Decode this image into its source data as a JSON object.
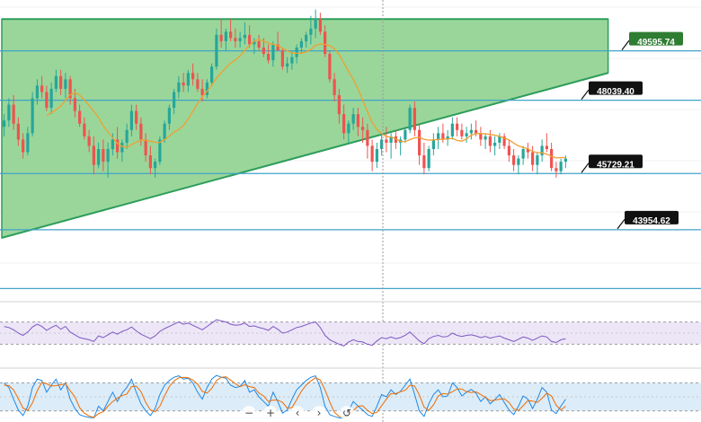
{
  "chart_data": {
    "type": "candlestick",
    "title": "",
    "xlabel": "",
    "ylabel": "",
    "ylim": [
      41800,
      51200
    ],
    "grid": true,
    "colors": {
      "up": "#26a69a",
      "down": "#ef5350",
      "ma": "#f0a030",
      "channel_fill": "#8fd18f",
      "channel_line": "#2e9e5b",
      "level_line": "#3fa3c8",
      "tag_bg": "#111111",
      "tag_text": "#ffffff",
      "tag_highlight_bg": "#2e7d32",
      "rsi_band": "#ece6f7",
      "rsi_line": "#7e57c2",
      "stoch_band": "#dcecf8",
      "stoch_k": "#1e88e5",
      "stoch_d": "#ef6c00"
    },
    "levels": [
      {
        "label": "49595.74",
        "value": 49595.74,
        "highlight": true
      },
      {
        "label": "48039.40",
        "value": 48039.4,
        "highlight": false
      },
      {
        "label": "45729.21",
        "value": 45729.21,
        "highlight": false
      },
      {
        "label": "43954.62",
        "value": 43954.62,
        "highlight": false
      },
      {
        "label": "",
        "value": 42100,
        "highlight": false
      }
    ],
    "channel": {
      "upper": [
        [
          0,
          50600
        ],
        [
          128,
          50600
        ]
      ],
      "lower": [
        [
          0,
          43700
        ],
        [
          128,
          48900
        ]
      ]
    },
    "ma_period": 10,
    "candles": [
      [
        47200,
        47600,
        46900,
        47400
      ],
      [
        47400,
        48100,
        47200,
        47900
      ],
      [
        47900,
        48200,
        47100,
        47300
      ],
      [
        47300,
        47500,
        46600,
        46800
      ],
      [
        46800,
        47000,
        46200,
        46400
      ],
      [
        46400,
        47200,
        46300,
        47000
      ],
      [
        47000,
        48300,
        46900,
        48100
      ],
      [
        48100,
        48700,
        47900,
        48500
      ],
      [
        48500,
        48800,
        48100,
        48300
      ],
      [
        48300,
        48500,
        47700,
        47800
      ],
      [
        47800,
        48600,
        47600,
        48400
      ],
      [
        48400,
        49000,
        48300,
        48800
      ],
      [
        48800,
        49000,
        48200,
        48400
      ],
      [
        48400,
        48900,
        48100,
        48700
      ],
      [
        48700,
        48800,
        47900,
        48100
      ],
      [
        48100,
        48400,
        47500,
        47700
      ],
      [
        47700,
        47900,
        47200,
        47300
      ],
      [
        47300,
        47500,
        46800,
        46900
      ],
      [
        46900,
        47100,
        46400,
        46600
      ],
      [
        46600,
        46900,
        45700,
        46000
      ],
      [
        46000,
        46700,
        45900,
        46500
      ],
      [
        46500,
        46800,
        45800,
        46100
      ],
      [
        46100,
        46700,
        45600,
        46500
      ],
      [
        46500,
        47000,
        46300,
        46800
      ],
      [
        46800,
        47200,
        46200,
        46400
      ],
      [
        46400,
        46800,
        46100,
        46700
      ],
      [
        46700,
        47300,
        46500,
        47100
      ],
      [
        47100,
        47900,
        46900,
        47700
      ],
      [
        47700,
        47900,
        47100,
        47300
      ],
      [
        47300,
        47500,
        46600,
        46800
      ],
      [
        46800,
        47000,
        46100,
        46300
      ],
      [
        46300,
        46600,
        45700,
        45900
      ],
      [
        45900,
        46200,
        45600,
        46100
      ],
      [
        46100,
        46900,
        46000,
        46800
      ],
      [
        46800,
        47400,
        46700,
        47300
      ],
      [
        47300,
        47900,
        47100,
        47800
      ],
      [
        47800,
        48400,
        47600,
        48300
      ],
      [
        48300,
        48800,
        48100,
        48600
      ],
      [
        48600,
        48900,
        48300,
        48500
      ],
      [
        48500,
        49000,
        48300,
        48900
      ],
      [
        48900,
        49200,
        48500,
        48700
      ],
      [
        48700,
        48900,
        48300,
        48400
      ],
      [
        48400,
        48700,
        48000,
        48200
      ],
      [
        48200,
        48700,
        48100,
        48600
      ],
      [
        48600,
        49200,
        48500,
        49100
      ],
      [
        49100,
        50300,
        49000,
        50100
      ],
      [
        50100,
        50600,
        49700,
        49900
      ],
      [
        49900,
        50300,
        49600,
        50200
      ],
      [
        50200,
        50600,
        49900,
        50000
      ],
      [
        50000,
        50300,
        49700,
        49900
      ],
      [
        49900,
        50200,
        49700,
        50000
      ],
      [
        50000,
        50500,
        49800,
        50100
      ],
      [
        50100,
        50400,
        49700,
        49800
      ],
      [
        49800,
        50000,
        49500,
        49900
      ],
      [
        49900,
        50100,
        49600,
        49700
      ],
      [
        49700,
        50000,
        49400,
        49500
      ],
      [
        49500,
        49800,
        49200,
        49300
      ],
      [
        49300,
        49900,
        49100,
        49800
      ],
      [
        49800,
        50200,
        49600,
        49600
      ],
      [
        49600,
        49700,
        49000,
        49100
      ],
      [
        49100,
        49400,
        48900,
        49200
      ],
      [
        49200,
        49600,
        49000,
        49400
      ],
      [
        49400,
        49800,
        49200,
        49700
      ],
      [
        49700,
        50000,
        49500,
        49900
      ],
      [
        49900,
        50200,
        49700,
        50100
      ],
      [
        50100,
        50700,
        49800,
        50300
      ],
      [
        50300,
        50900,
        50000,
        50600
      ],
      [
        50600,
        50800,
        50100,
        50200
      ],
      [
        50200,
        50400,
        49400,
        49500
      ],
      [
        49500,
        49600,
        48600,
        48700
      ],
      [
        48700,
        48900,
        48000,
        48200
      ],
      [
        48200,
        48400,
        47300,
        47600
      ],
      [
        47600,
        47900,
        46800,
        47000
      ],
      [
        47000,
        47400,
        46700,
        47300
      ],
      [
        47300,
        47800,
        47100,
        47600
      ],
      [
        47600,
        47800,
        46900,
        47200
      ],
      [
        47200,
        47500,
        46700,
        47100
      ],
      [
        47100,
        47300,
        46200,
        46600
      ],
      [
        46600,
        46800,
        45800,
        46100
      ],
      [
        46100,
        46700,
        45900,
        46500
      ],
      [
        46500,
        47000,
        46300,
        46800
      ],
      [
        46800,
        47200,
        46400,
        46700
      ],
      [
        46700,
        47000,
        46200,
        46900
      ],
      [
        46900,
        47100,
        46500,
        46700
      ],
      [
        46700,
        46900,
        46300,
        46800
      ],
      [
        46800,
        47200,
        46700,
        47100
      ],
      [
        47100,
        47900,
        47000,
        47800
      ],
      [
        47800,
        48000,
        46900,
        47100
      ],
      [
        47100,
        47300,
        46000,
        46300
      ],
      [
        46300,
        46700,
        45700,
        45900
      ],
      [
        45900,
        46600,
        45800,
        46500
      ],
      [
        46500,
        47000,
        46300,
        46800
      ],
      [
        46800,
        47200,
        46500,
        47000
      ],
      [
        47000,
        47300,
        46700,
        46800
      ],
      [
        46800,
        47100,
        46600,
        46900
      ],
      [
        46900,
        47500,
        46800,
        47300
      ],
      [
        47300,
        47500,
        46900,
        47100
      ],
      [
        47100,
        47300,
        46800,
        46900
      ],
      [
        46900,
        47200,
        46700,
        47000
      ],
      [
        47000,
        47300,
        46800,
        47100
      ],
      [
        47100,
        47400,
        46900,
        47000
      ],
      [
        47000,
        47200,
        46600,
        46800
      ],
      [
        46800,
        47000,
        46500,
        46900
      ],
      [
        46900,
        47100,
        46400,
        46600
      ],
      [
        46600,
        46900,
        46300,
        46700
      ],
      [
        46700,
        47000,
        46500,
        46900
      ],
      [
        46900,
        47000,
        46500,
        46600
      ],
      [
        46600,
        46800,
        46100,
        46300
      ],
      [
        46300,
        46500,
        45800,
        46000
      ],
      [
        46000,
        46300,
        45700,
        46200
      ],
      [
        46200,
        46600,
        46000,
        46500
      ],
      [
        46500,
        46700,
        46200,
        46400
      ],
      [
        46400,
        46600,
        45800,
        46000
      ],
      [
        46000,
        46400,
        45700,
        46300
      ],
      [
        46300,
        46800,
        46100,
        46600
      ],
      [
        46600,
        47000,
        46400,
        46500
      ],
      [
        46500,
        46700,
        45800,
        45900
      ],
      [
        45900,
        46100,
        45600,
        45800
      ],
      [
        45800,
        46200,
        45700,
        46100
      ],
      [
        46100,
        46300,
        45900,
        46200
      ]
    ],
    "rsi": [
      62,
      60,
      56,
      50,
      46,
      52,
      61,
      66,
      62,
      55,
      60,
      64,
      57,
      62,
      52,
      47,
      42,
      40,
      38,
      35,
      45,
      42,
      47,
      52,
      48,
      53,
      56,
      61,
      54,
      48,
      44,
      40,
      45,
      53,
      58,
      62,
      66,
      70,
      66,
      68,
      64,
      60,
      56,
      62,
      68,
      74,
      72,
      70,
      66,
      64,
      65,
      68,
      62,
      63,
      60,
      58,
      55,
      62,
      57,
      50,
      52,
      56,
      60,
      62,
      65,
      68,
      70,
      60,
      46,
      38,
      34,
      30,
      27,
      34,
      38,
      35,
      34,
      30,
      28,
      36,
      42,
      40,
      43,
      40,
      42,
      46,
      52,
      44,
      36,
      31,
      40,
      44,
      46,
      43,
      44,
      50,
      46,
      44,
      46,
      47,
      45,
      42,
      44,
      41,
      43,
      45,
      41,
      38,
      35,
      39,
      43,
      41,
      37,
      41,
      45,
      43,
      35,
      33,
      38,
      40
    ],
    "stoch_k": [
      80,
      70,
      45,
      22,
      10,
      30,
      70,
      88,
      85,
      60,
      75,
      88,
      65,
      80,
      45,
      25,
      12,
      8,
      6,
      5,
      30,
      20,
      40,
      60,
      40,
      58,
      70,
      88,
      60,
      35,
      20,
      10,
      25,
      55,
      75,
      85,
      92,
      95,
      88,
      90,
      80,
      60,
      45,
      70,
      88,
      96,
      92,
      90,
      75,
      70,
      72,
      85,
      60,
      65,
      50,
      40,
      30,
      60,
      40,
      15,
      22,
      45,
      65,
      75,
      85,
      92,
      95,
      70,
      30,
      12,
      8,
      5,
      4,
      20,
      40,
      30,
      22,
      12,
      8,
      30,
      55,
      50,
      65,
      55,
      62,
      75,
      88,
      55,
      20,
      8,
      35,
      55,
      65,
      50,
      52,
      80,
      70,
      52,
      60,
      66,
      58,
      40,
      50,
      35,
      44,
      55,
      38,
      22,
      12,
      30,
      52,
      45,
      25,
      45,
      70,
      60,
      22,
      14,
      30,
      45
    ],
    "stoch_d": [
      75,
      74,
      65,
      46,
      26,
      21,
      37,
      63,
      81,
      78,
      73,
      74,
      76,
      78,
      63,
      50,
      27,
      15,
      9,
      6,
      14,
      18,
      30,
      40,
      47,
      53,
      56,
      72,
      73,
      61,
      38,
      22,
      18,
      30,
      52,
      72,
      84,
      91,
      92,
      91,
      86,
      77,
      62,
      58,
      68,
      85,
      92,
      93,
      86,
      78,
      72,
      76,
      72,
      70,
      58,
      52,
      40,
      43,
      43,
      38,
      26,
      27,
      44,
      62,
      75,
      84,
      91,
      86,
      65,
      39,
      17,
      8,
      6,
      10,
      21,
      30,
      31,
      21,
      14,
      17,
      31,
      45,
      57,
      57,
      61,
      64,
      75,
      73,
      54,
      28,
      21,
      33,
      52,
      57,
      56,
      61,
      67,
      67,
      61,
      59,
      61,
      55,
      49,
      42,
      43,
      45,
      46,
      38,
      24,
      21,
      31,
      42,
      41,
      38,
      47,
      58,
      52,
      32,
      22,
      30
    ],
    "rsi_bands": [
      70,
      30
    ],
    "stoch_bands": [
      80,
      20
    ]
  },
  "toolbar": {
    "zoom_out_icon": "minus-icon",
    "zoom_in_icon": "plus-icon",
    "scroll_left_icon": "chevron-left-icon",
    "scroll_right_icon": "chevron-right-icon",
    "reset_icon": "reset-icon"
  }
}
